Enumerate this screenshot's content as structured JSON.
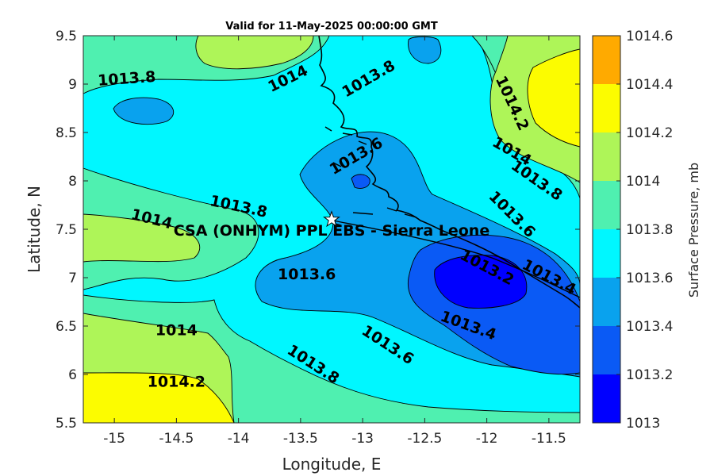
{
  "chart_data": {
    "type": "contour",
    "title": "Valid for 11-May-2025 00:00:00 GMT",
    "xlabel": "Longitude, E",
    "ylabel": "Latitude, N",
    "xlim": [
      -15.25,
      -11.25
    ],
    "ylim": [
      5.5,
      9.5
    ],
    "x_ticks": [
      -15,
      -14.5,
      -14,
      -13.5,
      -13,
      -12.5,
      -12,
      -11.5
    ],
    "x_tick_labels": [
      "-15",
      "-14.5",
      "-14",
      "-13.5",
      "-13",
      "-12.5",
      "-12",
      "-11.5"
    ],
    "y_ticks": [
      5.5,
      6,
      6.5,
      7,
      7.5,
      8,
      8.5,
      9,
      9.5
    ],
    "y_tick_labels": [
      "5.5",
      "6",
      "6.5",
      "7",
      "7.5",
      "8",
      "8.5",
      "9",
      "9.5"
    ],
    "colorbar": {
      "label": "Surface Pressure, mb",
      "ticks": [
        1013,
        1013.2,
        1013.4,
        1013.6,
        1013.8,
        1014,
        1014.2,
        1014.4,
        1014.6
      ],
      "tick_labels": [
        "1013",
        "1013.2",
        "1013.4",
        "1013.6",
        "1013.8",
        "1014",
        "1014.2",
        "1014.4",
        "1014.6"
      ],
      "levels": [
        1013,
        1013.2,
        1013.4,
        1013.6,
        1013.8,
        1014,
        1014.2,
        1014.4,
        1014.6
      ],
      "colors": [
        "#0000ff",
        "#0a5af5",
        "#09a2ee",
        "#00f7ff",
        "#4ff0b0",
        "#aef558",
        "#fcfc00",
        "#ffaa00",
        "#ff5500"
      ]
    },
    "contour_labels": [
      {
        "text": "1013.8",
        "lon": -14.9,
        "lat": 9.05,
        "angle": -4
      },
      {
        "text": "1014",
        "lon": -13.6,
        "lat": 9.05,
        "angle": -26
      },
      {
        "text": "1013.8",
        "lon": -12.95,
        "lat": 9.05,
        "angle": -30
      },
      {
        "text": "1014.2",
        "lon": -11.8,
        "lat": 8.8,
        "angle": 65
      },
      {
        "text": "1014",
        "lon": -11.8,
        "lat": 8.3,
        "angle": 30
      },
      {
        "text": "1013.8",
        "lon": -11.6,
        "lat": 8.0,
        "angle": 35
      },
      {
        "text": "1013.6",
        "lon": -13.05,
        "lat": 8.25,
        "angle": -30
      },
      {
        "text": "1013.8",
        "lon": -14.0,
        "lat": 7.73,
        "angle": 12
      },
      {
        "text": "1014",
        "lon": -14.7,
        "lat": 7.6,
        "angle": 14
      },
      {
        "text": "1013.6",
        "lon": -11.8,
        "lat": 7.65,
        "angle": 45
      },
      {
        "text": "1013.2",
        "lon": -12.0,
        "lat": 7.1,
        "angle": 28
      },
      {
        "text": "1013.4",
        "lon": -11.5,
        "lat": 7.0,
        "angle": 28
      },
      {
        "text": "1013.6",
        "lon": -13.45,
        "lat": 7.03,
        "angle": 0
      },
      {
        "text": "1013.4",
        "lon": -12.15,
        "lat": 6.5,
        "angle": 20
      },
      {
        "text": "1013.6",
        "lon": -12.8,
        "lat": 6.3,
        "angle": 33
      },
      {
        "text": "1014",
        "lon": -14.5,
        "lat": 6.45,
        "angle": 0
      },
      {
        "text": "1013.8",
        "lon": -13.4,
        "lat": 6.1,
        "angle": 33
      },
      {
        "text": "1014.2",
        "lon": -14.5,
        "lat": 5.92,
        "angle": 0
      }
    ],
    "station": {
      "name": "CSA (ONHYM) PPL EBS  - Sierra Leone",
      "lon": -13.25,
      "lat": 7.6,
      "marker": "star"
    },
    "grid": false
  }
}
